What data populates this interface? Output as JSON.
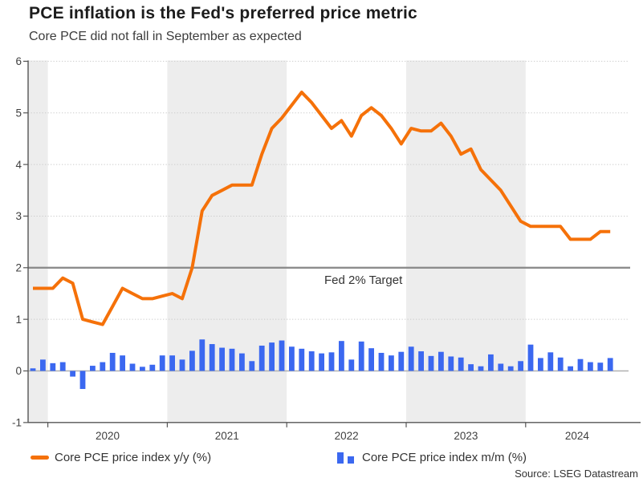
{
  "header": {
    "title": "PCE inflation is the Fed's preferred price metric",
    "subtitle": "Core PCE did not fall in September as expected"
  },
  "legend": {
    "yy_label": "Core PCE price index y/y (%)",
    "mm_label": "Core PCE price index m/m (%)"
  },
  "source": "Source: LSEG Datastream",
  "colors": {
    "line": "#f57109",
    "bar": "#3b68f0",
    "target_line": "#8c8c8c",
    "band": "#ededed",
    "grid": "#cbcbcb",
    "zero_line": "#b0b0b0",
    "spine": "#555555",
    "axis_text": "#3f3f3f",
    "annotation_text": "#333333"
  },
  "chart_data": {
    "type": "line+bar",
    "x_monthly_start": "2019-11",
    "x_monthly_end": "2024-09",
    "x_tick_labels": [
      "2020",
      "2021",
      "2022",
      "2023",
      "2024"
    ],
    "shaded_year_bands": [
      "2019-partial",
      "2021",
      "2023"
    ],
    "ylim": [
      -1,
      6
    ],
    "y_ticks": [
      -1,
      0,
      1,
      2,
      3,
      4,
      5,
      6
    ],
    "grid_dotted_at": [
      1,
      3,
      4,
      5,
      6
    ],
    "target_annotation": {
      "label": "Fed 2% Target",
      "value": 2
    },
    "series": [
      {
        "name": "Core PCE price index y/y (%)",
        "type": "line",
        "color": "#f57109",
        "values": [
          1.6,
          1.6,
          1.6,
          1.8,
          1.7,
          1.0,
          0.95,
          0.9,
          1.25,
          1.6,
          1.5,
          1.4,
          1.4,
          1.45,
          1.5,
          1.4,
          2.0,
          3.1,
          3.4,
          3.5,
          3.6,
          3.6,
          3.6,
          4.2,
          4.7,
          4.9,
          5.15,
          5.4,
          5.2,
          4.95,
          4.7,
          4.85,
          4.55,
          4.95,
          5.1,
          4.95,
          4.7,
          4.4,
          4.7,
          4.65,
          4.65,
          4.8,
          4.55,
          4.2,
          4.3,
          3.9,
          3.7,
          3.5,
          3.2,
          2.9,
          2.8,
          2.8,
          2.8,
          2.8,
          2.55,
          2.55,
          2.55,
          2.7,
          2.7
        ]
      },
      {
        "name": "Core PCE price index m/m (%)",
        "type": "bar",
        "color": "#3b68f0",
        "values": [
          0.05,
          0.22,
          0.15,
          0.17,
          -0.11,
          -0.35,
          0.1,
          0.17,
          0.35,
          0.3,
          0.14,
          0.08,
          0.12,
          0.3,
          0.3,
          0.22,
          0.39,
          0.61,
          0.52,
          0.45,
          0.43,
          0.34,
          0.19,
          0.49,
          0.55,
          0.59,
          0.47,
          0.43,
          0.38,
          0.34,
          0.36,
          0.58,
          0.22,
          0.57,
          0.44,
          0.35,
          0.3,
          0.37,
          0.47,
          0.38,
          0.29,
          0.37,
          0.28,
          0.26,
          0.13,
          0.09,
          0.32,
          0.14,
          0.09,
          0.19,
          0.51,
          0.25,
          0.36,
          0.26,
          0.09,
          0.23,
          0.17,
          0.16,
          0.25
        ]
      }
    ]
  }
}
